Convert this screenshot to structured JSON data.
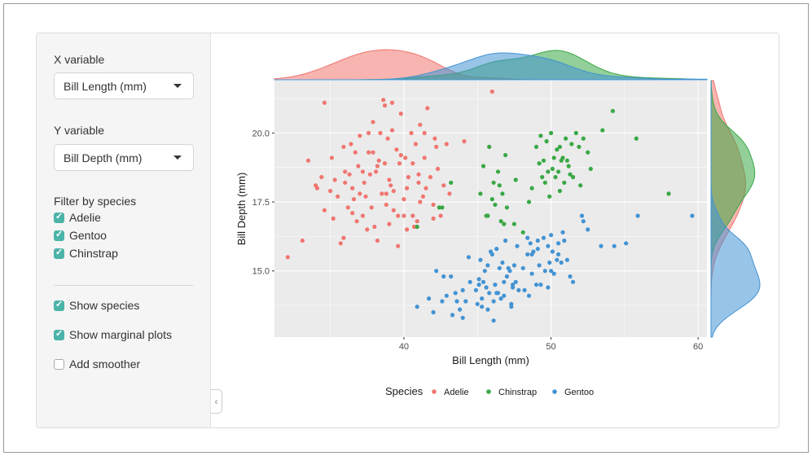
{
  "controls": {
    "x_variable": {
      "label": "X variable",
      "selected": "Bill Length (mm)"
    },
    "y_variable": {
      "label": "Y variable",
      "selected": "Bill Depth (mm)"
    },
    "filter": {
      "label": "Filter by species",
      "options": [
        {
          "label": "Adelie",
          "checked": true
        },
        {
          "label": "Gentoo",
          "checked": true
        },
        {
          "label": "Chinstrap",
          "checked": true
        }
      ]
    },
    "show_species": {
      "label": "Show species",
      "checked": true
    },
    "show_marginal": {
      "label": "Show marginal plots",
      "checked": true
    },
    "add_smoother": {
      "label": "Add smoother",
      "checked": false
    },
    "collapse_glyph": "‹"
  },
  "chart_data": {
    "type": "scatter",
    "xlabel": "Bill Length (mm)",
    "ylabel": "Bill Depth (mm)",
    "xlim": [
      31.2,
      60.6
    ],
    "ylim": [
      12.6,
      21.9
    ],
    "x_ticks": [
      40,
      50,
      60
    ],
    "x_tick_labels": [
      "40",
      "50",
      "60"
    ],
    "y_ticks": [
      15,
      17.5,
      20
    ],
    "y_tick_labels": [
      "15.0",
      "17.5",
      "20.0"
    ],
    "grid": true,
    "marginal_plots": true,
    "legend": {
      "title": "Species",
      "position": "bottom"
    },
    "series": [
      {
        "name": "Adelie",
        "color": "#f07670",
        "x": [
          32.1,
          33.1,
          33.5,
          34.0,
          34.4,
          34.6,
          35.0,
          35.2,
          35.5,
          35.7,
          35.9,
          36.0,
          36.2,
          36.4,
          36.5,
          36.6,
          36.8,
          36.9,
          37.0,
          37.2,
          37.3,
          37.5,
          37.6,
          37.7,
          37.8,
          37.9,
          38.1,
          38.2,
          38.3,
          38.5,
          38.6,
          38.7,
          38.8,
          38.9,
          39.0,
          39.1,
          39.2,
          39.3,
          39.5,
          39.6,
          39.7,
          39.8,
          40.0,
          40.1,
          40.2,
          40.3,
          40.5,
          40.6,
          40.8,
          40.9,
          41.0,
          41.1,
          41.3,
          41.4,
          41.5,
          41.6,
          41.8,
          42.0,
          42.2,
          42.3,
          42.5,
          42.7,
          42.9,
          43.1,
          44.1,
          45.8,
          46.0,
          34.6,
          35.1,
          36.7,
          37.6,
          38.2,
          39.2,
          40.2,
          41.1,
          42.1,
          36.3,
          37.4,
          38.7,
          39.6,
          40.6,
          37.0,
          38.0,
          39.0,
          40.0,
          36.0,
          41.0,
          35.3,
          38.8,
          39.8,
          37.9,
          36.5,
          40.7,
          42.0,
          38.4,
          39.3,
          41.4,
          37.2,
          35.9,
          34.1
        ],
        "y": [
          15.5,
          16.1,
          19.0,
          18.1,
          18.4,
          21.1,
          17.9,
          16.9,
          17.7,
          16.0,
          19.5,
          18.6,
          17.3,
          19.6,
          18.0,
          17.6,
          16.8,
          18.8,
          19.9,
          17.0,
          18.2,
          16.5,
          19.3,
          18.5,
          17.3,
          20.4,
          18.6,
          16.1,
          19.0,
          17.8,
          21.2,
          18.9,
          17.4,
          19.8,
          16.7,
          18.1,
          20.1,
          17.2,
          19.4,
          15.9,
          18.9,
          20.7,
          17.6,
          19.1,
          16.5,
          18.4,
          20.0,
          17.0,
          19.6,
          16.8,
          18.5,
          20.3,
          17.7,
          19.1,
          18.0,
          20.9,
          18.4,
          17.4,
          19.5,
          18.7,
          17.0,
          18.1,
          19.6,
          17.8,
          19.7,
          19.5,
          21.5,
          17.2,
          19.1,
          19.3,
          20.0,
          18.8,
          21.1,
          18.0,
          17.5,
          19.8,
          18.5,
          17.7,
          21.0,
          17.0,
          18.9,
          17.8,
          16.6,
          18.3,
          17.0,
          18.2,
          18.2,
          18.3,
          17.8,
          19.2,
          19.3,
          17.1,
          16.6,
          16.9,
          20.0,
          17.9,
          20.0,
          18.6,
          16.2,
          18.0
        ]
      },
      {
        "name": "Chinstrap",
        "color": "#39a845",
        "x": [
          40.9,
          42.4,
          42.6,
          43.2,
          45.2,
          45.4,
          45.6,
          45.8,
          46.0,
          46.1,
          46.2,
          46.4,
          46.5,
          46.6,
          46.7,
          46.9,
          47.0,
          47.5,
          47.6,
          48.1,
          48.5,
          48.7,
          49.0,
          49.2,
          49.3,
          49.5,
          49.6,
          49.7,
          49.8,
          49.9,
          50.0,
          50.1,
          50.2,
          50.3,
          50.4,
          50.5,
          50.6,
          50.7,
          50.8,
          50.9,
          51.0,
          51.1,
          51.3,
          51.4,
          51.5,
          51.7,
          51.9,
          52.0,
          52.2,
          52.5,
          52.7,
          53.5,
          54.2,
          55.8,
          58.0,
          45.7,
          46.8,
          49.4,
          50.6,
          51.2
        ],
        "y": [
          16.6,
          17.3,
          17.3,
          18.2,
          17.8,
          18.8,
          17.0,
          19.5,
          17.6,
          18.2,
          17.4,
          18.6,
          18.1,
          16.8,
          17.8,
          19.2,
          17.3,
          16.7,
          18.3,
          16.4,
          17.5,
          18.0,
          19.5,
          18.9,
          19.9,
          19.0,
          18.2,
          19.7,
          18.6,
          17.7,
          20.0,
          18.7,
          19.1,
          18.4,
          19.4,
          18.6,
          19.5,
          19.0,
          19.1,
          18.2,
          19.8,
          19.0,
          18.5,
          19.6,
          18.4,
          20.0,
          19.5,
          18.1,
          19.8,
          19.3,
          18.7,
          20.1,
          20.8,
          19.8,
          17.8,
          17.0,
          16.7,
          18.4,
          17.9,
          18.8
        ]
      },
      {
        "name": "Gentoo",
        "color": "#4393d3",
        "x": [
          40.9,
          41.7,
          42.0,
          42.2,
          42.6,
          42.9,
          43.3,
          43.5,
          43.8,
          44.0,
          44.4,
          44.9,
          45.0,
          45.1,
          45.2,
          45.3,
          45.4,
          45.5,
          45.6,
          45.7,
          45.8,
          45.9,
          46.1,
          46.2,
          46.3,
          46.4,
          46.5,
          46.6,
          46.7,
          46.8,
          46.9,
          47.0,
          47.2,
          47.3,
          47.4,
          47.5,
          47.6,
          47.7,
          47.8,
          48.1,
          48.2,
          48.4,
          48.5,
          48.6,
          48.7,
          48.8,
          49.0,
          49.1,
          49.2,
          49.3,
          49.5,
          49.6,
          49.8,
          49.9,
          50.0,
          50.1,
          50.2,
          50.4,
          50.5,
          50.7,
          50.8,
          51.1,
          51.3,
          51.5,
          52.1,
          52.2,
          52.5,
          53.4,
          54.3,
          55.1,
          55.9,
          59.6,
          43.2,
          44.5,
          46.0,
          47.4,
          48.4,
          45.1,
          46.3,
          49.1,
          50.0,
          44.2,
          42.7,
          45.3,
          48.7,
          50.5,
          46.8,
          47.3,
          43.6,
          47.1,
          49.8,
          45.7,
          44.0,
          50.9,
          46.1
        ],
        "y": [
          13.7,
          14.0,
          13.5,
          15.0,
          13.9,
          14.1,
          13.4,
          14.2,
          13.6,
          14.3,
          15.5,
          14.3,
          13.8,
          14.5,
          15.4,
          13.7,
          14.6,
          15.0,
          14.4,
          15.2,
          14.2,
          15.7,
          13.9,
          14.5,
          15.8,
          14.2,
          15.1,
          14.0,
          15.3,
          14.6,
          16.1,
          14.8,
          15.0,
          13.8,
          14.5,
          15.2,
          14.6,
          15.9,
          14.3,
          15.1,
          14.3,
          15.6,
          14.1,
          16.0,
          14.9,
          15.7,
          14.5,
          15.8,
          15.2,
          14.5,
          16.2,
          15.0,
          15.9,
          15.3,
          16.3,
          15.7,
          14.9,
          15.4,
          16.0,
          15.3,
          16.4,
          15.4,
          14.8,
          14.6,
          17.0,
          16.8,
          16.5,
          15.9,
          15.9,
          16.0,
          17.0,
          17.0,
          14.8,
          14.6,
          15.6,
          14.4,
          16.2,
          14.7,
          14.2,
          16.1,
          15.0,
          13.9,
          14.8,
          14.0,
          15.6,
          15.6,
          14.1,
          13.7,
          13.9,
          15.1,
          14.4,
          13.6,
          13.3,
          16.1,
          13.2
        ]
      }
    ]
  }
}
